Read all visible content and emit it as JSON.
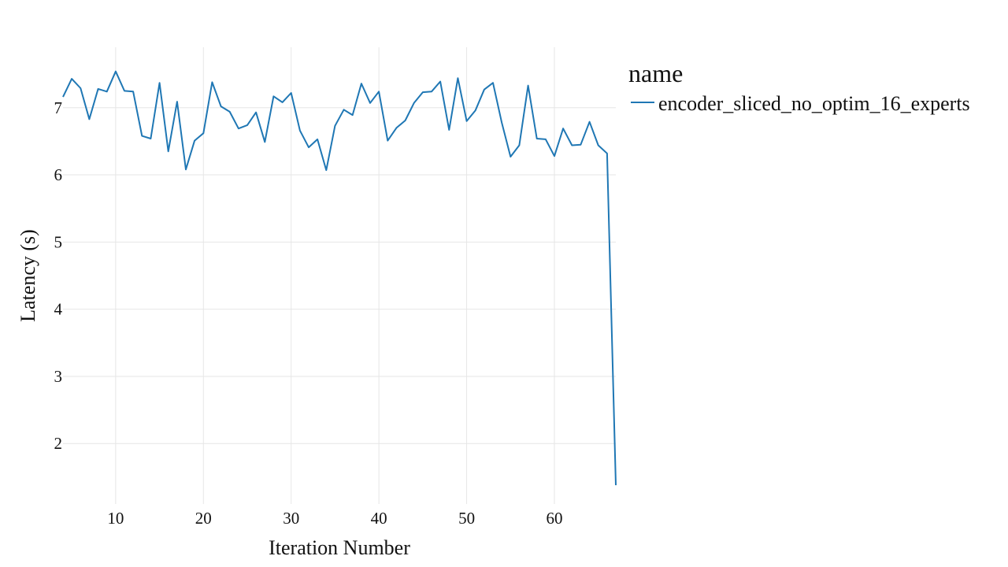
{
  "chart_data": {
    "type": "line",
    "title": "",
    "xlabel": "Iteration Number",
    "ylabel": "Latency (s)",
    "xlim": [
      4,
      67
    ],
    "ylim": [
      1.1,
      7.9
    ],
    "xticks": [
      10,
      20,
      30,
      40,
      50,
      60
    ],
    "yticks": [
      2,
      3,
      4,
      5,
      6,
      7
    ],
    "grid": true,
    "legend": {
      "title": "name",
      "position": "right"
    },
    "series": [
      {
        "name": "encoder_sliced_no_optim_16_experts",
        "color": "#1f77b4",
        "x": [
          4,
          5,
          6,
          7,
          8,
          9,
          10,
          11,
          12,
          13,
          14,
          15,
          16,
          17,
          18,
          19,
          20,
          21,
          22,
          23,
          24,
          25,
          26,
          27,
          28,
          29,
          30,
          31,
          32,
          33,
          34,
          35,
          36,
          37,
          38,
          39,
          40,
          41,
          42,
          43,
          44,
          45,
          46,
          47,
          48,
          49,
          50,
          51,
          52,
          53,
          54,
          55,
          56,
          57,
          58,
          59,
          60,
          61,
          62,
          63,
          64,
          65,
          66,
          67
        ],
        "y": [
          7.16,
          7.43,
          7.29,
          6.83,
          7.28,
          7.24,
          7.54,
          7.25,
          7.24,
          6.58,
          6.54,
          7.37,
          6.35,
          7.09,
          6.08,
          6.51,
          6.62,
          7.38,
          7.02,
          6.94,
          6.69,
          6.74,
          6.93,
          6.49,
          7.17,
          7.08,
          7.22,
          6.66,
          6.41,
          6.53,
          6.07,
          6.73,
          6.97,
          6.89,
          7.36,
          7.07,
          7.24,
          6.51,
          6.7,
          6.81,
          7.07,
          7.23,
          7.24,
          7.39,
          6.67,
          7.44,
          6.8,
          6.96,
          7.27,
          7.37,
          6.78,
          6.27,
          6.44,
          7.33,
          6.54,
          6.53,
          6.28,
          6.69,
          6.44,
          6.45,
          6.79,
          6.44,
          6.32,
          1.38
        ]
      }
    ]
  }
}
